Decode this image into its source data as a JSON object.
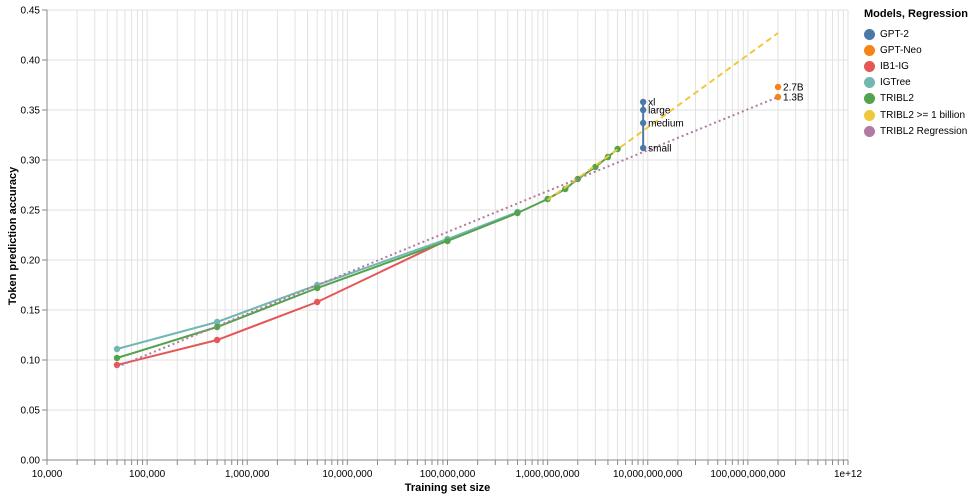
{
  "chart_data": {
    "type": "line",
    "xlabel": "Training set size",
    "ylabel": "Token prediction accuracy",
    "x_scale": "log",
    "xlim": [
      10000,
      1000000000000
    ],
    "ylim": [
      0,
      0.45
    ],
    "x_ticks": [
      {
        "value": 10000,
        "label": "10,000"
      },
      {
        "value": 100000,
        "label": "100,000"
      },
      {
        "value": 1000000,
        "label": "1,000,000"
      },
      {
        "value": 10000000,
        "label": "10,000,000"
      },
      {
        "value": 100000000,
        "label": "100,000,000"
      },
      {
        "value": 1000000000,
        "label": "1,000,000,000"
      },
      {
        "value": 10000000000,
        "label": "10,000,000,000"
      },
      {
        "value": 100000000000,
        "label": "100,000,000,000"
      },
      {
        "value": 1000000000000,
        "label": "1e+12"
      }
    ],
    "y_ticks": [
      {
        "value": 0,
        "label": "0.00"
      },
      {
        "value": 0.05,
        "label": "0.05"
      },
      {
        "value": 0.1,
        "label": "0.10"
      },
      {
        "value": 0.15,
        "label": "0.15"
      },
      {
        "value": 0.2,
        "label": "0.20"
      },
      {
        "value": 0.25,
        "label": "0.25"
      },
      {
        "value": 0.3,
        "label": "0.30"
      },
      {
        "value": 0.35,
        "label": "0.35"
      },
      {
        "value": 0.4,
        "label": "0.40"
      },
      {
        "value": 0.45,
        "label": "0.45"
      }
    ],
    "grid": true,
    "legend": {
      "title": "Models, Regression",
      "placement": "right",
      "entries": [
        {
          "name": "GPT-2",
          "color": "#4c78a8"
        },
        {
          "name": "GPT-Neo",
          "color": "#f58518"
        },
        {
          "name": "IB1-IG",
          "color": "#e45756"
        },
        {
          "name": "IGTree",
          "color": "#72b7b2"
        },
        {
          "name": "TRIBL2",
          "color": "#54a24b"
        },
        {
          "name": "TRIBL2 >= 1 billion",
          "color": "#eeca3b"
        },
        {
          "name": "TRIBL2 Regression",
          "color": "#b279a2"
        }
      ]
    },
    "series": [
      {
        "name": "GPT-2",
        "color": "#4c78a8",
        "style": "solid",
        "points": [
          {
            "x": 9000000000,
            "y": 0.312,
            "label": "small"
          },
          {
            "x": 9000000000,
            "y": 0.337,
            "label": "medium"
          },
          {
            "x": 9000000000,
            "y": 0.35,
            "label": "large"
          },
          {
            "x": 9000000000,
            "y": 0.358,
            "label": "xl"
          }
        ]
      },
      {
        "name": "GPT-Neo",
        "color": "#f58518",
        "style": "points",
        "points": [
          {
            "x": 200000000000,
            "y": 0.363,
            "label": "1.3B"
          },
          {
            "x": 200000000000,
            "y": 0.373,
            "label": "2.7B"
          }
        ]
      },
      {
        "name": "IB1-IG",
        "color": "#e45756",
        "style": "solid",
        "points": [
          {
            "x": 50000,
            "y": 0.095
          },
          {
            "x": 500000,
            "y": 0.12
          },
          {
            "x": 5000000,
            "y": 0.158
          },
          {
            "x": 100000000,
            "y": 0.22
          }
        ]
      },
      {
        "name": "IGTree",
        "color": "#72b7b2",
        "style": "solid",
        "points": [
          {
            "x": 50000,
            "y": 0.111
          },
          {
            "x": 500000,
            "y": 0.138
          },
          {
            "x": 5000000,
            "y": 0.175
          },
          {
            "x": 100000000,
            "y": 0.221
          },
          {
            "x": 500000000,
            "y": 0.248
          }
        ]
      },
      {
        "name": "TRIBL2",
        "color": "#54a24b",
        "style": "solid",
        "points": [
          {
            "x": 50000,
            "y": 0.102
          },
          {
            "x": 500000,
            "y": 0.133
          },
          {
            "x": 5000000,
            "y": 0.172
          },
          {
            "x": 100000000,
            "y": 0.219
          },
          {
            "x": 500000000,
            "y": 0.247
          },
          {
            "x": 1000000000,
            "y": 0.261
          },
          {
            "x": 1500000000,
            "y": 0.271
          },
          {
            "x": 2000000000,
            "y": 0.281
          },
          {
            "x": 3000000000,
            "y": 0.293
          },
          {
            "x": 4000000000,
            "y": 0.303
          },
          {
            "x": 5000000000,
            "y": 0.311
          }
        ]
      },
      {
        "name": "TRIBL2 >= 1 billion",
        "color": "#eeca3b",
        "style": "dashed",
        "points": [
          {
            "x": 1000000000,
            "y": 0.26
          },
          {
            "x": 200000000000,
            "y": 0.427
          }
        ]
      },
      {
        "name": "TRIBL2 Regression",
        "color": "#b279a2",
        "style": "dotted",
        "points": [
          {
            "x": 50000,
            "y": 0.093
          },
          {
            "x": 200000000000,
            "y": 0.363
          }
        ]
      }
    ]
  }
}
